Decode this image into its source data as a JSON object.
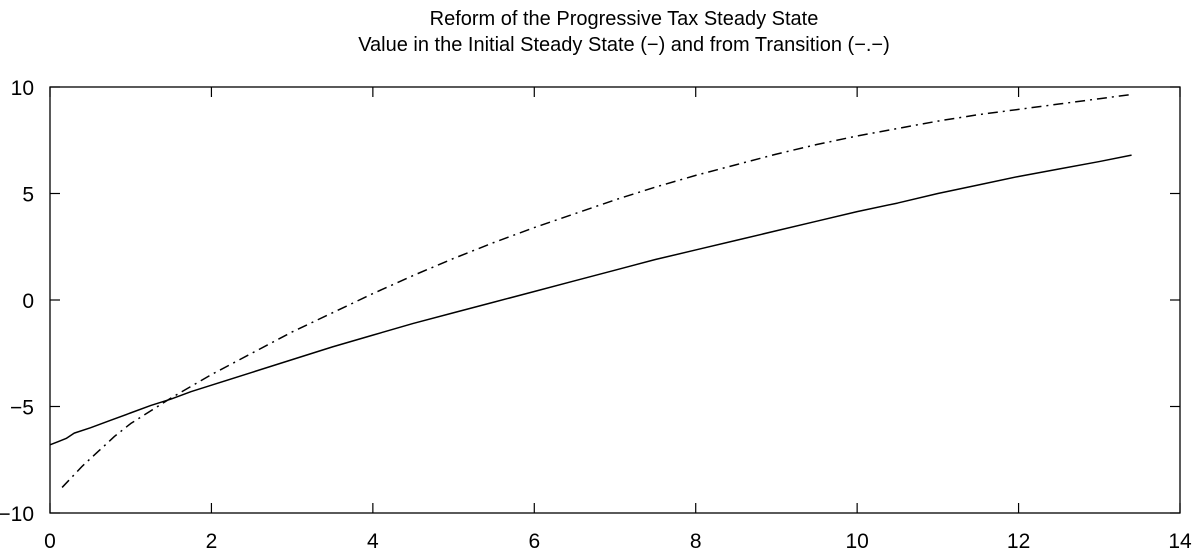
{
  "chart_data": {
    "type": "line",
    "title": "Reform of the Progressive Tax Steady State",
    "subtitle": "Value in the Initial Steady State (−) and from Transition (−.−)",
    "xlabel": "",
    "ylabel": "",
    "xlim": [
      0,
      14
    ],
    "ylim": [
      -10,
      10
    ],
    "xticks": [
      0,
      2,
      4,
      6,
      8,
      10,
      12,
      14
    ],
    "xtick_labels": [
      "0",
      "2",
      "4",
      "6",
      "8",
      "10",
      "12",
      "14"
    ],
    "yticks": [
      -10,
      -5,
      0,
      5,
      10
    ],
    "ytick_labels": [
      "−10",
      "−5",
      "0",
      "5",
      "10"
    ],
    "grid": false,
    "series": [
      {
        "style": "solid",
        "color": "#000000",
        "x": [
          0.0,
          0.1,
          0.2,
          0.3,
          0.5,
          0.75,
          1.0,
          1.25,
          1.5,
          1.75,
          2.0,
          2.5,
          3.0,
          3.5,
          4.0,
          4.5,
          5.0,
          5.5,
          6.0,
          6.5,
          7.0,
          7.5,
          8.0,
          8.5,
          9.0,
          9.5,
          10.0,
          10.5,
          11.0,
          11.5,
          12.0,
          12.5,
          13.0,
          13.4
        ],
        "y": [
          -6.8,
          -6.65,
          -6.5,
          -6.25,
          -6.0,
          -5.65,
          -5.3,
          -4.95,
          -4.65,
          -4.3,
          -4.0,
          -3.4,
          -2.8,
          -2.2,
          -1.65,
          -1.1,
          -0.6,
          -0.1,
          0.4,
          0.9,
          1.4,
          1.9,
          2.35,
          2.8,
          3.25,
          3.7,
          4.15,
          4.55,
          5.0,
          5.4,
          5.8,
          6.15,
          6.5,
          6.8
        ]
      },
      {
        "style": "dashdot",
        "color": "#000000",
        "x": [
          0.15,
          0.25,
          0.4,
          0.6,
          0.8,
          1.0,
          1.25,
          1.5,
          1.75,
          2.0,
          2.5,
          3.0,
          3.5,
          4.0,
          4.5,
          5.0,
          5.5,
          6.0,
          6.5,
          7.0,
          7.5,
          8.0,
          8.5,
          9.0,
          9.5,
          10.0,
          10.5,
          11.0,
          11.5,
          12.0,
          12.5,
          13.0,
          13.4
        ],
        "y": [
          -8.8,
          -8.4,
          -7.8,
          -7.1,
          -6.4,
          -5.8,
          -5.2,
          -4.6,
          -4.05,
          -3.5,
          -2.5,
          -1.5,
          -0.6,
          0.3,
          1.15,
          1.95,
          2.7,
          3.4,
          4.05,
          4.7,
          5.3,
          5.85,
          6.35,
          6.85,
          7.3,
          7.7,
          8.05,
          8.4,
          8.7,
          8.95,
          9.2,
          9.45,
          9.65
        ]
      }
    ]
  }
}
